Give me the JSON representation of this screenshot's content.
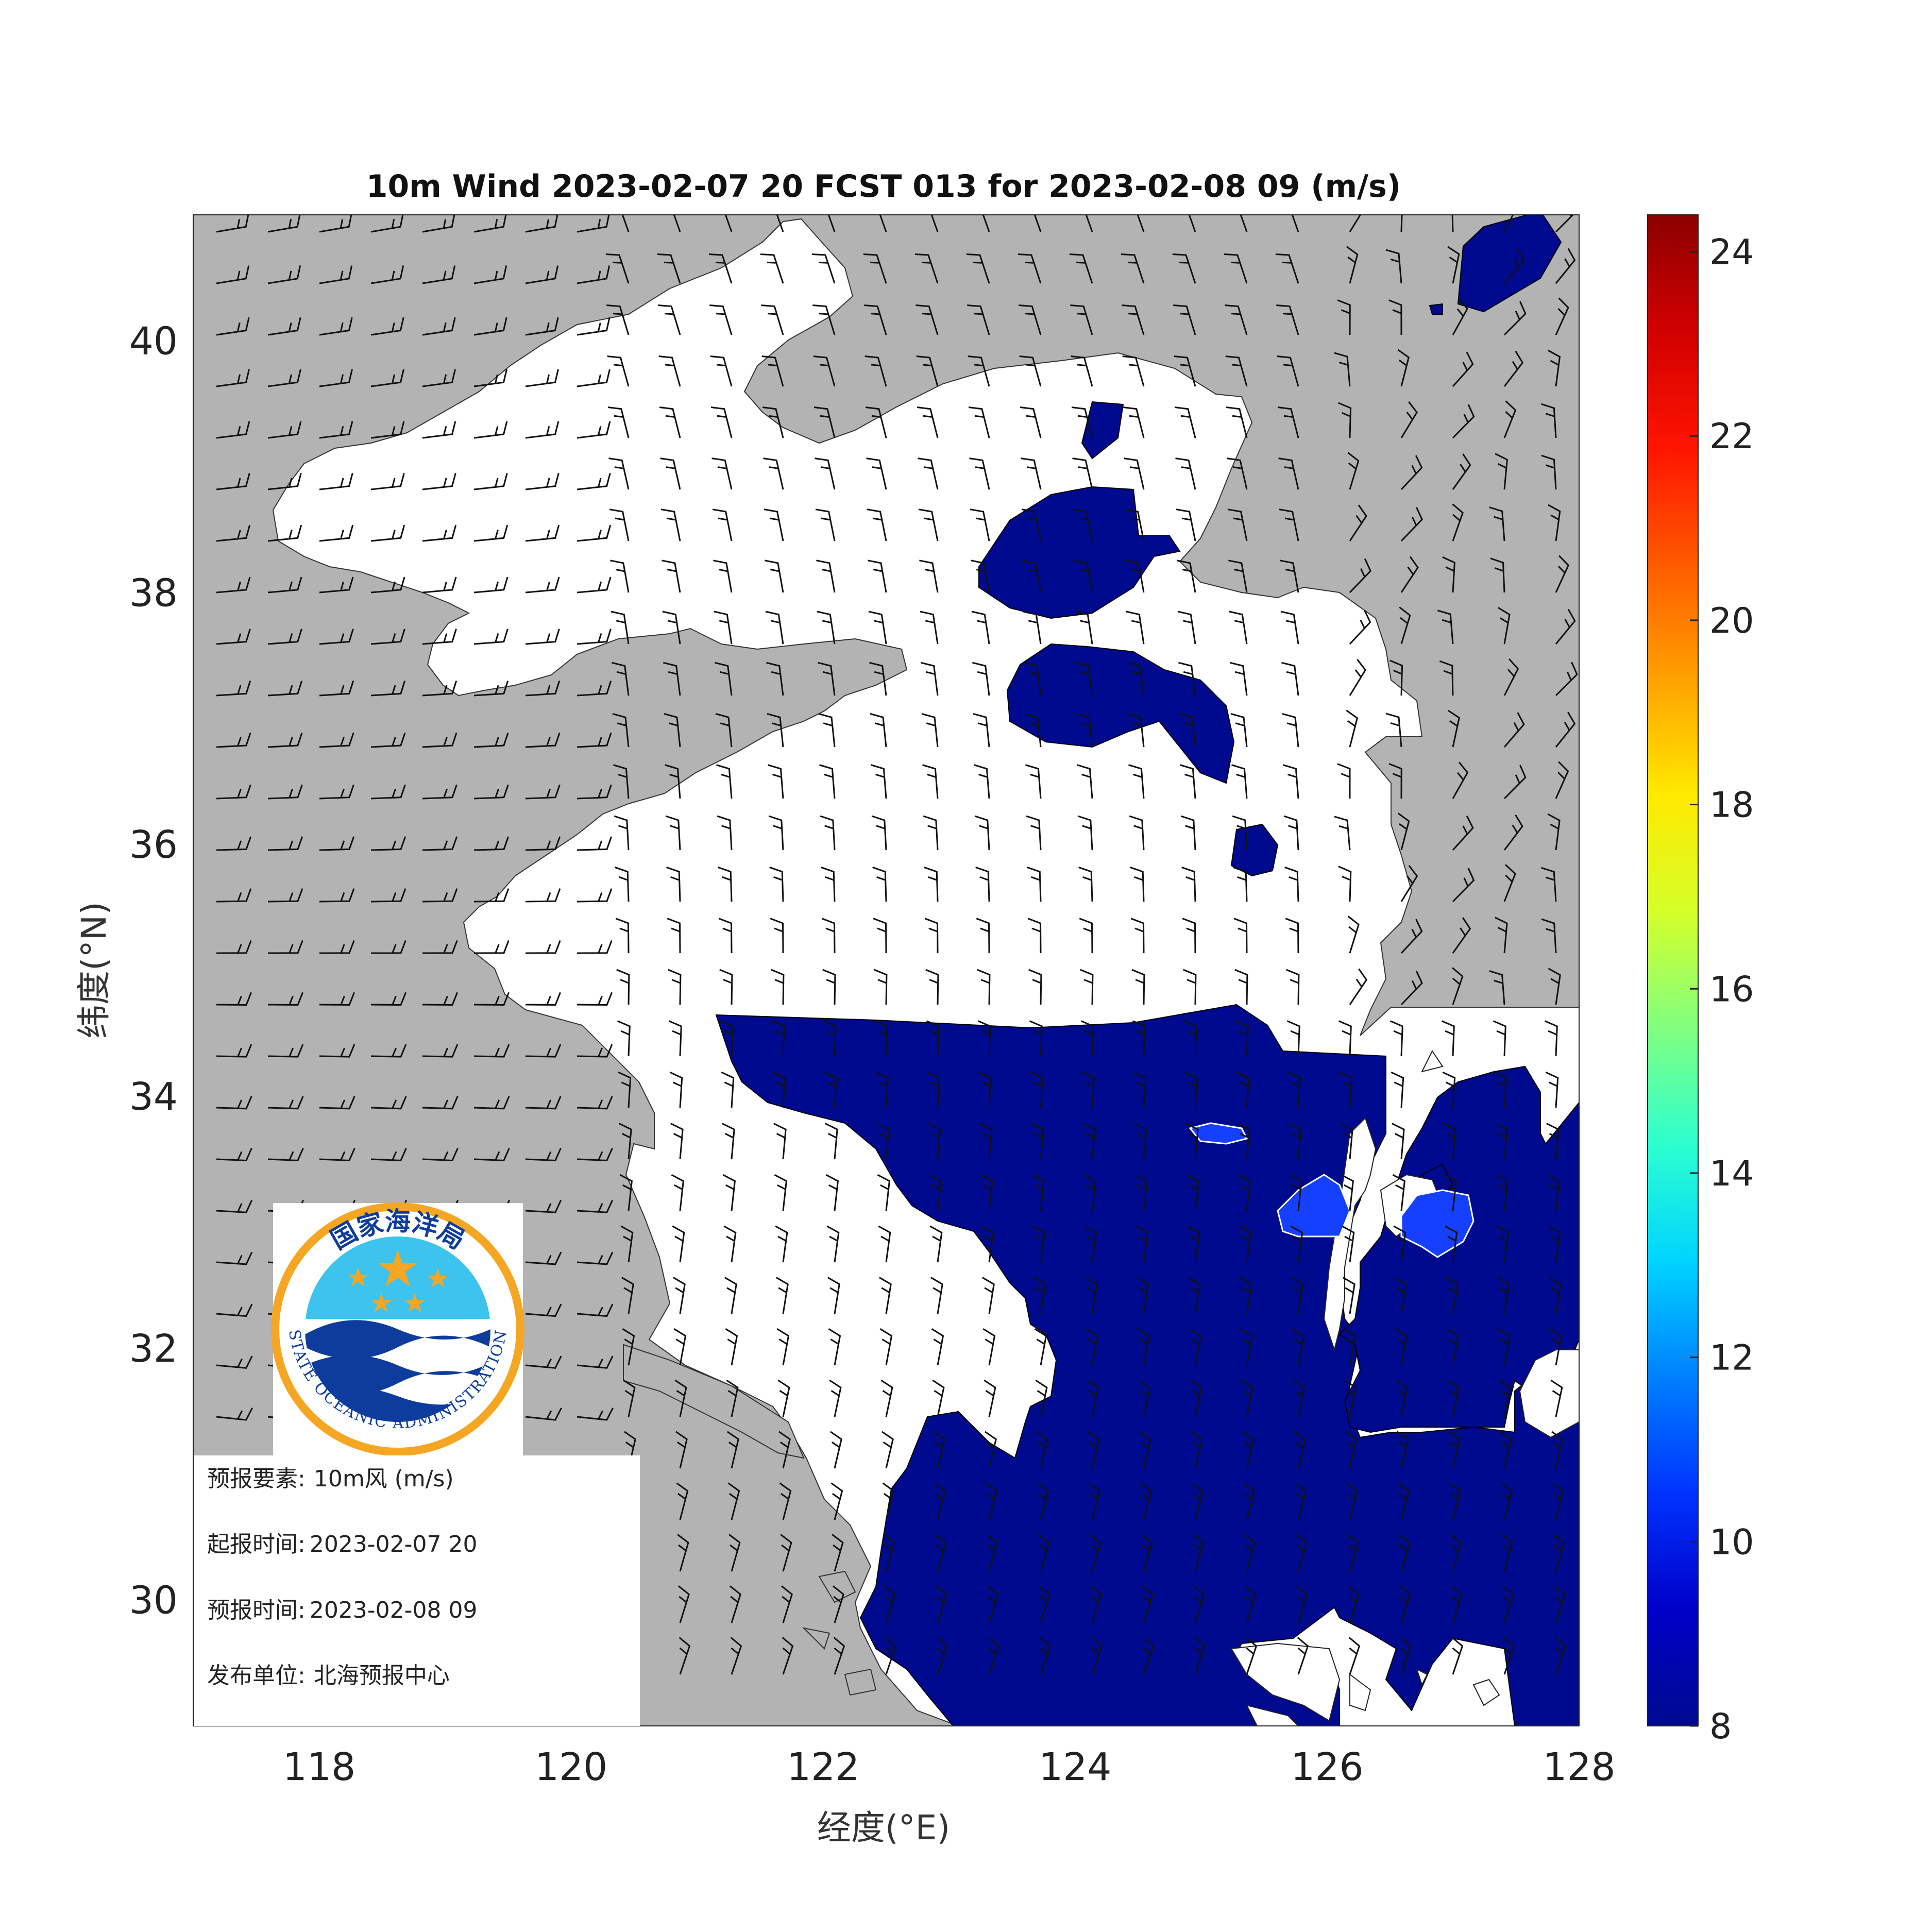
{
  "title": "10m Wind 2023-02-07 20 FCST 013 for 2023-02-08 09 (m/s)",
  "axes": {
    "xlabel": "经度(°E)",
    "ylabel": "纬度(°N)",
    "xlim": [
      117,
      128
    ],
    "ylim": [
      29,
      41
    ],
    "xticks": [
      118,
      120,
      122,
      124,
      126,
      128
    ],
    "yticks": [
      30,
      32,
      34,
      36,
      38,
      40
    ]
  },
  "colorbar": {
    "min": 8,
    "max": 24.4,
    "ticks": [
      8,
      10,
      12,
      14,
      16,
      18,
      20,
      22,
      24
    ],
    "colors": [
      "#000a8f",
      "#0000c8",
      "#0033ff",
      "#0080ff",
      "#00d4ff",
      "#2cffd0",
      "#80ff80",
      "#d4ff2a",
      "#ffea00",
      "#ffa200",
      "#ff5a00",
      "#ff1400",
      "#d10000",
      "#8a0000"
    ]
  },
  "colors": {
    "land": "#b3b3b3",
    "sea": "#ffffff",
    "wind_8": "#000a8f",
    "wind_10": "#1640ff"
  },
  "logo": {
    "top_text": "国家海洋局",
    "bottom_text": "STATE OCEANIC ADMINISTRATION",
    "ring_color": "#f5a623",
    "sky_color": "#3cc3ee",
    "wave_color": "#0d3c9c"
  },
  "info": {
    "element_label": "预报要素:",
    "element_value": "10m风 (m/s)",
    "init_label": "起报时间:",
    "init_value": "2023-02-07 20",
    "valid_label": "预报时间:",
    "valid_value": "2023-02-08 09",
    "issuer_label": "发布单位:",
    "issuer_value": "北海预报中心"
  }
}
